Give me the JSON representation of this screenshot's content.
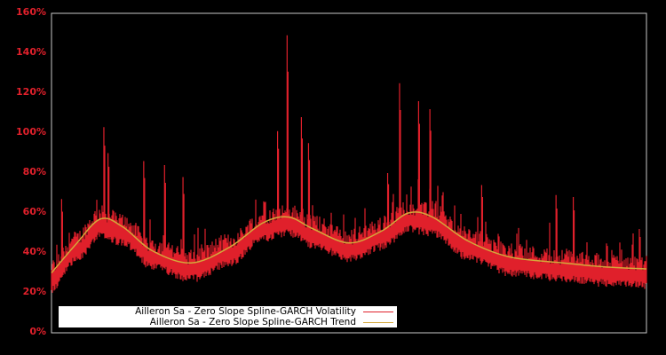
{
  "chart_data": {
    "type": "line",
    "title": "",
    "xlabel": "",
    "ylabel": "",
    "ylim": [
      0,
      160
    ],
    "yticks": [
      "0%",
      "20%",
      "40%",
      "60%",
      "80%",
      "100%",
      "120%",
      "140%",
      "160%"
    ],
    "xticks": [],
    "grid": false,
    "legend_position": "lower-left",
    "colors": {
      "background": "#000000",
      "axis": "#c8c8c8",
      "tick_label": "#e0202b",
      "volatility": "#e0202b",
      "trend": "#d4a83a"
    },
    "series": [
      {
        "name": "Ailleron Sa - Zero Slope Spline-GARCH Volatility",
        "type": "noisy-line",
        "approx_baseline_pct": [
          30,
          47,
          55,
          54,
          45,
          38,
          34,
          32,
          33,
          38,
          45,
          52,
          54,
          50,
          44,
          43,
          46,
          55,
          58,
          54,
          45,
          38,
          35,
          33,
          32,
          31,
          30,
          30
        ],
        "notable_spikes_pct": [
          {
            "x_frac": 0.017,
            "y": 67
          },
          {
            "x_frac": 0.088,
            "y": 103
          },
          {
            "x_frac": 0.095,
            "y": 90
          },
          {
            "x_frac": 0.155,
            "y": 86
          },
          {
            "x_frac": 0.19,
            "y": 84
          },
          {
            "x_frac": 0.221,
            "y": 78
          },
          {
            "x_frac": 0.38,
            "y": 101
          },
          {
            "x_frac": 0.396,
            "y": 149
          },
          {
            "x_frac": 0.42,
            "y": 108
          },
          {
            "x_frac": 0.432,
            "y": 95
          },
          {
            "x_frac": 0.565,
            "y": 80
          },
          {
            "x_frac": 0.585,
            "y": 125
          },
          {
            "x_frac": 0.617,
            "y": 116
          },
          {
            "x_frac": 0.636,
            "y": 112
          },
          {
            "x_frac": 0.723,
            "y": 74
          },
          {
            "x_frac": 0.848,
            "y": 69
          },
          {
            "x_frac": 0.877,
            "y": 68
          },
          {
            "x_frac": 0.988,
            "y": 52
          }
        ]
      },
      {
        "name": "Ailleron Sa - Zero Slope Spline-GARCH Trend",
        "type": "smooth-line",
        "points_pct": [
          {
            "x_frac": 0.0,
            "y": 30
          },
          {
            "x_frac": 0.04,
            "y": 44
          },
          {
            "x_frac": 0.082,
            "y": 57
          },
          {
            "x_frac": 0.12,
            "y": 53
          },
          {
            "x_frac": 0.17,
            "y": 41
          },
          {
            "x_frac": 0.235,
            "y": 35
          },
          {
            "x_frac": 0.3,
            "y": 43
          },
          {
            "x_frac": 0.355,
            "y": 55
          },
          {
            "x_frac": 0.398,
            "y": 58
          },
          {
            "x_frac": 0.44,
            "y": 52
          },
          {
            "x_frac": 0.5,
            "y": 45
          },
          {
            "x_frac": 0.555,
            "y": 51
          },
          {
            "x_frac": 0.6,
            "y": 60
          },
          {
            "x_frac": 0.64,
            "y": 58
          },
          {
            "x_frac": 0.7,
            "y": 46
          },
          {
            "x_frac": 0.77,
            "y": 38
          },
          {
            "x_frac": 0.86,
            "y": 35
          },
          {
            "x_frac": 0.93,
            "y": 33
          },
          {
            "x_frac": 1.0,
            "y": 32
          }
        ]
      }
    ]
  },
  "legend": {
    "items": [
      {
        "label": "Ailleron Sa - Zero Slope Spline-GARCH Volatility",
        "color": "#e0202b"
      },
      {
        "label": "Ailleron Sa - Zero Slope Spline-GARCH Trend",
        "color": "#d4a83a"
      }
    ]
  }
}
